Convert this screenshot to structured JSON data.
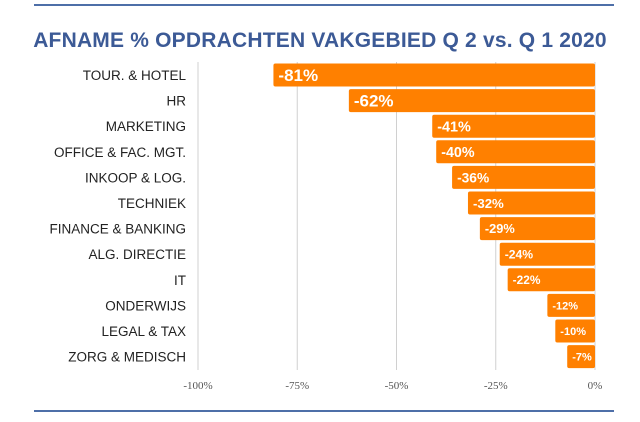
{
  "chart_data": {
    "type": "bar",
    "orientation": "horizontal",
    "title": "AFNAME % OPDRACHTEN VAKGEBIED Q 2 vs. Q 1 2020",
    "categories": [
      "TOUR. & HOTEL",
      "HR",
      "MARKETING",
      "OFFICE & FAC. MGT.",
      "INKOOP & LOG.",
      "TECHNIEK",
      "FINANCE & BANKING",
      "ALG. DIRECTIE",
      "IT",
      "ONDERWIJS",
      "LEGAL & TAX",
      "ZORG & MEDISCH"
    ],
    "values": [
      -81,
      -62,
      -41,
      -40,
      -36,
      -32,
      -29,
      -24,
      -22,
      -12,
      -10,
      -7
    ],
    "value_labels": [
      "-81%",
      "-62%",
      "-41%",
      "-40%",
      "-36%",
      "-32%",
      "-29%",
      "-24%",
      "-22%",
      "-12%",
      "-10%",
      "-7%"
    ],
    "xlim": [
      -100,
      0
    ],
    "xticks": [
      -100,
      -75,
      -50,
      -25,
      0
    ],
    "xtick_labels": [
      "-100%",
      "-75%",
      "-50%",
      "-25%",
      "0%"
    ],
    "grid": true,
    "bar_color": "#ff8000",
    "grid_color": "#d0d0d0",
    "title_color": "#3c5a96",
    "rule_color": "#4e6fa8"
  }
}
